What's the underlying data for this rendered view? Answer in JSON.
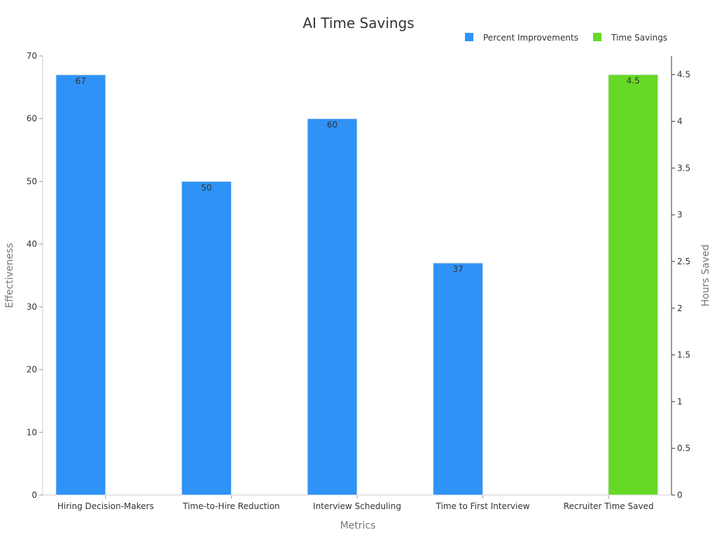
{
  "chart_data": {
    "type": "bar",
    "title": "AI Time Savings",
    "xlabel": "Metrics",
    "ylabel_left": "Effectiveness",
    "ylabel_right": "Hours Saved",
    "categories": [
      "Hiring Decision-Makers",
      "Time-to-Hire Reduction",
      "Interview Scheduling",
      "Time to First Interview",
      "Recruiter Time Saved"
    ],
    "y_left_range": [
      0,
      70
    ],
    "y_left_ticks": [
      "0",
      "10",
      "20",
      "30",
      "40",
      "50",
      "60",
      "70"
    ],
    "y_right_range": [
      0,
      4.7
    ],
    "y_right_ticks": [
      "0",
      "0.5",
      "1",
      "1.5",
      "2",
      "2.5",
      "3",
      "3.5",
      "4",
      "4.5"
    ],
    "grid": false,
    "legend_position": "top-right",
    "series": [
      {
        "name": "Percent Improvements",
        "axis": "left",
        "color": "#2e92f7",
        "values": [
          67,
          50,
          60,
          37,
          null
        ],
        "labels": [
          "67",
          "50",
          "60",
          "37",
          ""
        ]
      },
      {
        "name": "Time Savings",
        "axis": "right",
        "color": "#66d926",
        "values": [
          null,
          null,
          null,
          null,
          4.5
        ],
        "labels": [
          "",
          "",
          "",
          "",
          "4.5"
        ]
      }
    ]
  }
}
